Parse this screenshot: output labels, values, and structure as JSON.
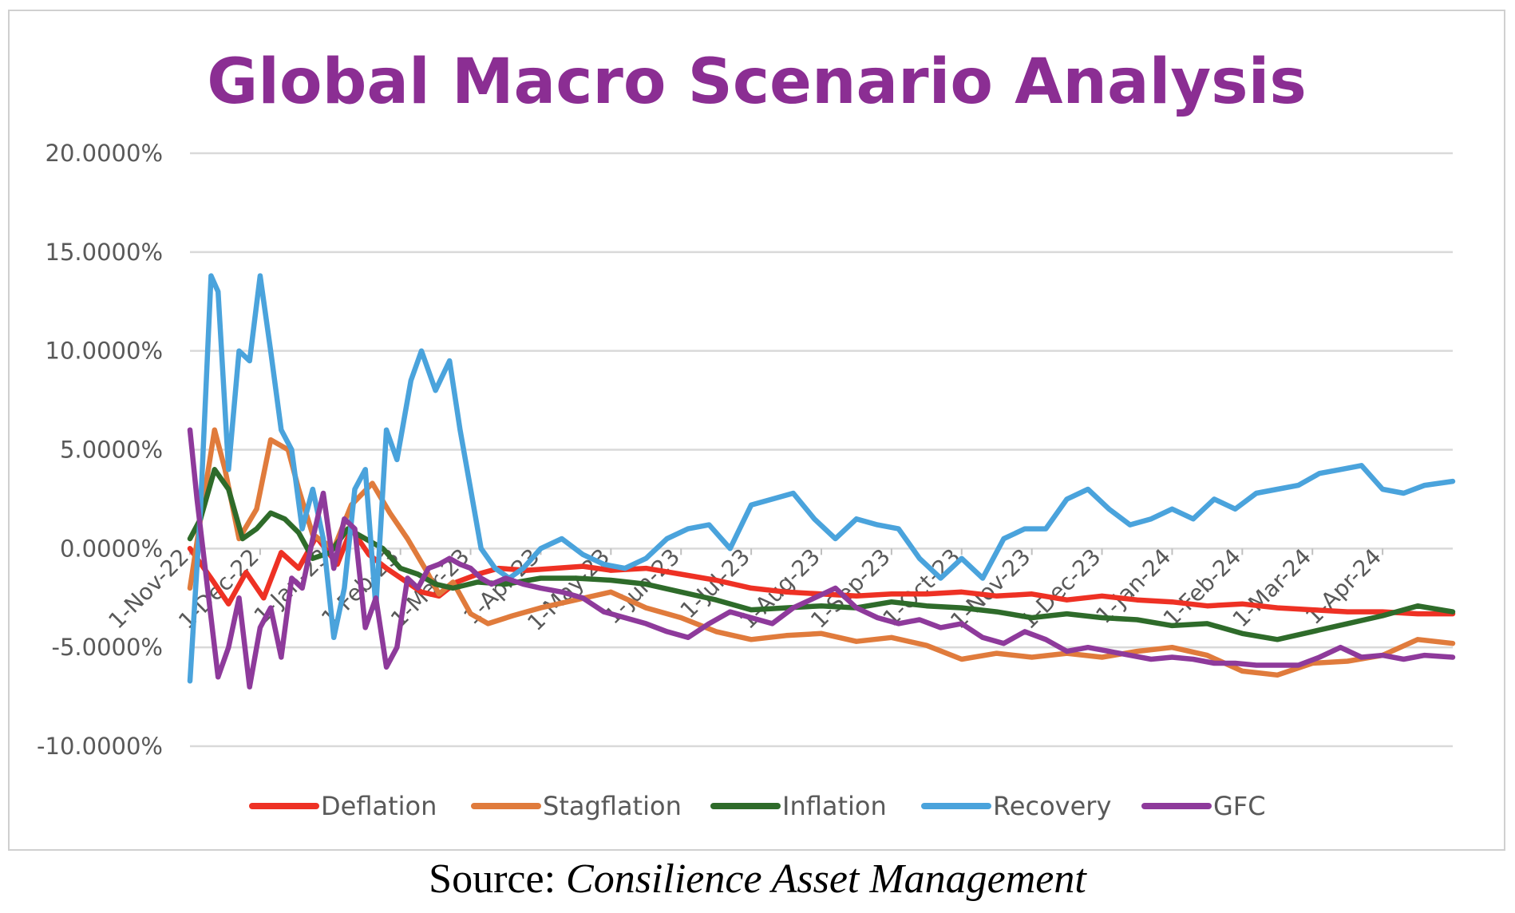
{
  "source": {
    "prefix": "Source:",
    "name": "Consilience Asset Management"
  },
  "colors": {
    "title": "#8b2e93",
    "Deflation": "#ee3124",
    "Stagflation": "#e07b3c",
    "Inflation": "#2e6b2a",
    "Recovery": "#4aa3dc",
    "GFC": "#8e3a9b"
  },
  "chart_data": {
    "type": "line",
    "title": "Global Macro Scenario Analysis",
    "xlabel": "",
    "ylabel": "",
    "ylim": [
      -10,
      20
    ],
    "yticks": [
      20,
      15,
      10,
      5,
      0,
      -5,
      -10
    ],
    "ytick_labels": [
      "20.0000%",
      "15.0000%",
      "10.0000%",
      "5.0000%",
      "0.0000%",
      "-5.0000%",
      "-10.0000%"
    ],
    "xlim": [
      0,
      18
    ],
    "x_tick_positions": [
      0,
      1,
      2,
      3,
      4,
      5,
      6,
      7,
      8,
      9,
      10,
      11,
      12,
      13,
      14,
      15,
      16,
      17
    ],
    "x_tick_labels": [
      "1-Nov-22",
      "1-Dec-22",
      "1-Jan-23",
      "1-Feb-23",
      "1-Mar-23",
      "1-Apr-23",
      "1-May-23",
      "1-Jun-23",
      "1-Jul-23",
      "1-Aug-23",
      "1-Sep-23",
      "1-Oct-23",
      "1-Nov-23",
      "1-Dec-23",
      "1-Jan-24",
      "1-Feb-24",
      "1-Mar-24",
      "1-Apr-24"
    ],
    "grid": true,
    "legend_position": "bottom",
    "series": [
      {
        "name": "Deflation",
        "x": [
          0,
          0.3,
          0.55,
          0.8,
          1.05,
          1.3,
          1.55,
          1.8,
          2.1,
          2.3,
          2.55,
          2.8,
          3.05,
          3.3,
          3.55,
          3.8,
          4.1,
          4.4,
          4.8,
          5.2,
          5.6,
          6.0,
          6.5,
          7.0,
          7.5,
          8.0,
          8.5,
          9.0,
          9.5,
          10.0,
          10.5,
          11.0,
          11.5,
          12.0,
          12.5,
          13.0,
          13.5,
          14.0,
          14.5,
          15.0,
          15.5,
          16.0,
          16.5,
          17.0,
          17.5,
          18.0
        ],
        "y": [
          0.0,
          -1.5,
          -2.8,
          -1.2,
          -2.5,
          -0.2,
          -1.0,
          0.6,
          -0.8,
          1.0,
          -0.3,
          -1.0,
          -1.6,
          -2.2,
          -2.4,
          -1.7,
          -1.3,
          -1.0,
          -1.1,
          -1.0,
          -0.9,
          -1.1,
          -1.0,
          -1.3,
          -1.6,
          -2.0,
          -2.2,
          -2.3,
          -2.4,
          -2.3,
          -2.3,
          -2.2,
          -2.4,
          -2.3,
          -2.6,
          -2.4,
          -2.6,
          -2.7,
          -2.9,
          -2.8,
          -3.0,
          -3.1,
          -3.2,
          -3.2,
          -3.3,
          -3.3
        ]
      },
      {
        "name": "Stagflation",
        "x": [
          0,
          0.15,
          0.35,
          0.5,
          0.7,
          0.95,
          1.15,
          1.4,
          1.55,
          1.75,
          2.05,
          2.3,
          2.6,
          2.85,
          3.1,
          3.35,
          3.55,
          3.75,
          4.0,
          4.25,
          4.6,
          5.0,
          5.5,
          6.0,
          6.5,
          7.0,
          7.5,
          8.0,
          8.5,
          9.0,
          9.5,
          10.0,
          10.5,
          11.0,
          11.5,
          12.0,
          12.5,
          13.0,
          13.5,
          14.0,
          14.5,
          15.0,
          15.5,
          16.0,
          16.5,
          17.0,
          17.5,
          18.0
        ],
        "y": [
          -2.0,
          1.5,
          6.0,
          4.0,
          0.5,
          2.0,
          5.5,
          5.0,
          3.0,
          0.7,
          0.0,
          2.2,
          3.3,
          1.8,
          0.5,
          -1.0,
          -2.3,
          -1.7,
          -3.3,
          -3.8,
          -3.4,
          -3.0,
          -2.6,
          -2.2,
          -3.0,
          -3.5,
          -4.2,
          -4.6,
          -4.4,
          -4.3,
          -4.7,
          -4.5,
          -4.9,
          -5.6,
          -5.3,
          -5.5,
          -5.3,
          -5.5,
          -5.2,
          -5.0,
          -5.4,
          -6.2,
          -6.4,
          -5.8,
          -5.7,
          -5.4,
          -4.6,
          -4.8
        ]
      },
      {
        "name": "Inflation",
        "x": [
          0,
          0.15,
          0.35,
          0.55,
          0.75,
          0.95,
          1.15,
          1.35,
          1.55,
          1.75,
          2.0,
          2.25,
          2.5,
          2.75,
          3.0,
          3.25,
          3.5,
          3.75,
          4.1,
          4.5,
          5.0,
          5.5,
          6.0,
          6.5,
          7.0,
          7.5,
          8.0,
          8.5,
          9.0,
          9.5,
          10.0,
          10.5,
          11.0,
          11.5,
          12.0,
          12.5,
          13.0,
          13.5,
          14.0,
          14.5,
          15.0,
          15.5,
          16.0,
          16.5,
          17.0,
          17.5,
          18.0
        ],
        "y": [
          0.5,
          1.5,
          4.0,
          3.0,
          0.5,
          1.0,
          1.8,
          1.5,
          0.8,
          -0.5,
          -0.2,
          1.0,
          0.5,
          0.0,
          -1.0,
          -1.3,
          -1.8,
          -2.0,
          -1.7,
          -1.8,
          -1.5,
          -1.5,
          -1.6,
          -1.8,
          -2.2,
          -2.6,
          -3.1,
          -3.0,
          -2.9,
          -3.0,
          -2.7,
          -2.9,
          -3.0,
          -3.2,
          -3.5,
          -3.3,
          -3.5,
          -3.6,
          -3.9,
          -3.8,
          -4.3,
          -4.6,
          -4.2,
          -3.8,
          -3.4,
          -2.9,
          -3.2
        ]
      },
      {
        "name": "Recovery",
        "x": [
          0,
          0.15,
          0.3,
          0.4,
          0.55,
          0.7,
          0.85,
          1.0,
          1.15,
          1.3,
          1.45,
          1.6,
          1.75,
          1.9,
          2.05,
          2.2,
          2.35,
          2.5,
          2.65,
          2.8,
          2.95,
          3.15,
          3.3,
          3.5,
          3.7,
          3.85,
          4.0,
          4.15,
          4.35,
          4.55,
          4.75,
          5.0,
          5.3,
          5.6,
          5.9,
          6.2,
          6.5,
          6.8,
          7.1,
          7.4,
          7.7,
          8.0,
          8.3,
          8.6,
          8.9,
          9.2,
          9.5,
          9.8,
          10.1,
          10.4,
          10.7,
          11.0,
          11.3,
          11.6,
          11.9,
          12.2,
          12.5,
          12.8,
          13.1,
          13.4,
          13.7,
          14.0,
          14.3,
          14.6,
          14.9,
          15.2,
          15.5,
          15.8,
          16.1,
          16.4,
          16.7,
          17.0,
          17.3,
          17.6,
          18.0
        ],
        "y": [
          -6.7,
          2.0,
          13.8,
          13.0,
          4.0,
          10.0,
          9.5,
          13.8,
          10.0,
          6.0,
          5.0,
          1.0,
          3.0,
          0.5,
          -4.5,
          -2.0,
          3.0,
          4.0,
          -3.0,
          6.0,
          4.5,
          8.5,
          10.0,
          8.0,
          9.5,
          6.0,
          3.0,
          0.0,
          -1.0,
          -1.5,
          -1.0,
          0.0,
          0.5,
          -0.3,
          -0.8,
          -1.0,
          -0.5,
          0.5,
          1.0,
          1.2,
          0.0,
          2.2,
          2.5,
          2.8,
          1.5,
          0.5,
          1.5,
          1.2,
          1.0,
          -0.5,
          -1.5,
          -0.5,
          -1.5,
          0.5,
          1.0,
          1.0,
          2.5,
          3.0,
          2.0,
          1.2,
          1.5,
          2.0,
          1.5,
          2.5,
          2.0,
          2.8,
          3.0,
          3.2,
          3.8,
          4.0,
          4.2,
          3.0,
          2.8,
          3.2,
          3.4
        ]
      },
      {
        "name": "GFC",
        "x": [
          0,
          0.1,
          0.25,
          0.4,
          0.55,
          0.7,
          0.85,
          1.0,
          1.15,
          1.3,
          1.45,
          1.6,
          1.75,
          1.9,
          2.05,
          2.2,
          2.35,
          2.5,
          2.65,
          2.8,
          2.95,
          3.1,
          3.25,
          3.4,
          3.55,
          3.7,
          3.85,
          4.0,
          4.15,
          4.3,
          4.5,
          4.75,
          5.0,
          5.3,
          5.6,
          5.9,
          6.2,
          6.5,
          6.8,
          7.1,
          7.4,
          7.7,
          8.0,
          8.3,
          8.6,
          8.9,
          9.2,
          9.5,
          9.8,
          10.1,
          10.4,
          10.7,
          11.0,
          11.3,
          11.6,
          11.9,
          12.2,
          12.5,
          12.8,
          13.1,
          13.4,
          13.7,
          14.0,
          14.3,
          14.6,
          14.9,
          15.2,
          15.5,
          15.8,
          16.1,
          16.4,
          16.7,
          17.0,
          17.3,
          17.6,
          18.0
        ],
        "y": [
          6.0,
          2.5,
          -2.0,
          -6.5,
          -5.0,
          -2.5,
          -7.0,
          -4.0,
          -3.0,
          -5.5,
          -1.5,
          -2.0,
          0.5,
          2.8,
          -1.0,
          1.5,
          1.0,
          -4.0,
          -2.5,
          -6.0,
          -5.0,
          -1.5,
          -2.0,
          -1.0,
          -0.8,
          -0.5,
          -0.8,
          -1.0,
          -1.5,
          -1.8,
          -1.5,
          -1.8,
          -2.0,
          -2.2,
          -2.5,
          -3.2,
          -3.5,
          -3.8,
          -4.2,
          -4.5,
          -3.8,
          -3.2,
          -3.5,
          -3.8,
          -3.0,
          -2.5,
          -2.0,
          -3.0,
          -3.5,
          -3.8,
          -3.6,
          -4.0,
          -3.8,
          -4.5,
          -4.8,
          -4.2,
          -4.6,
          -5.2,
          -5.0,
          -5.2,
          -5.4,
          -5.6,
          -5.5,
          -5.6,
          -5.8,
          -5.8,
          -5.9,
          -5.9,
          -5.9,
          -5.5,
          -5.0,
          -5.5,
          -5.4,
          -5.6,
          -5.4,
          -5.5
        ]
      }
    ]
  }
}
